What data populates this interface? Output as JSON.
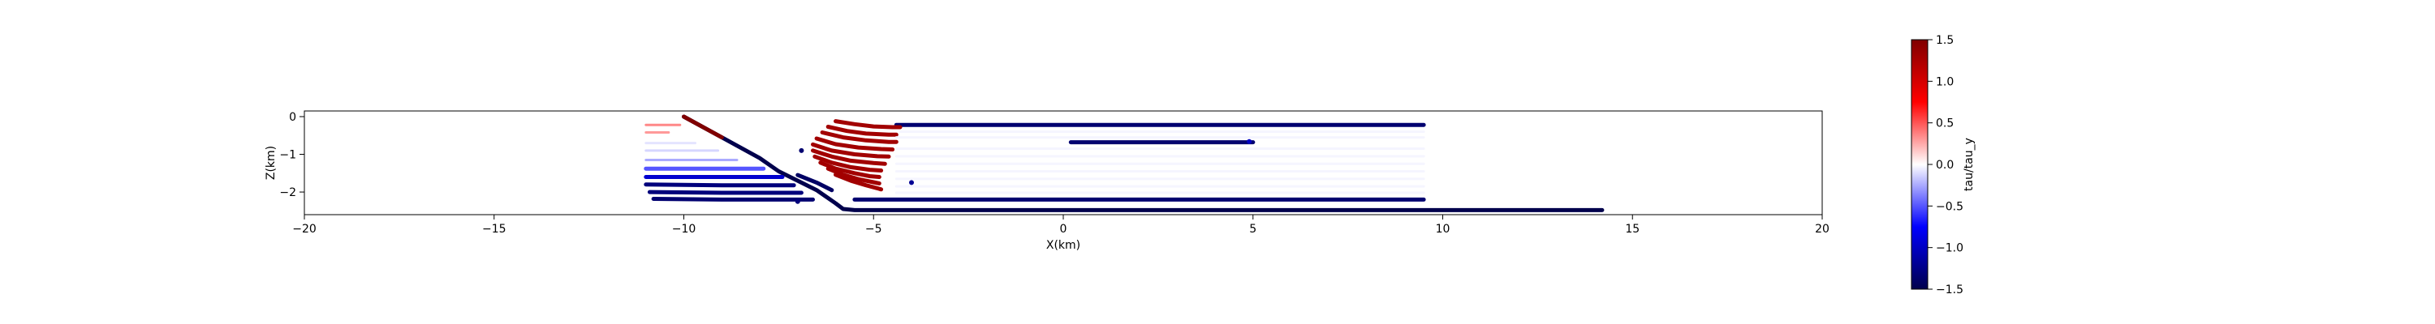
{
  "chart_data": {
    "type": "line",
    "title": "",
    "xlabel": "X(km)",
    "ylabel": "Z(km)",
    "xlim": [
      -20,
      20
    ],
    "ylim": [
      -2.6,
      0.15
    ],
    "xticks": [
      -20,
      -15,
      -10,
      -5,
      0,
      5,
      10,
      15,
      20
    ],
    "yticks": [
      0,
      -1,
      -2
    ],
    "grid": false,
    "legend": "none",
    "colormap": "seismic",
    "colorbar": {
      "label": "tau/tau_y",
      "range": [
        -1.5,
        1.5
      ],
      "ticks": [
        1.5,
        1.0,
        0.5,
        0.0,
        -0.5,
        -1.0,
        -1.5
      ]
    },
    "series": [
      {
        "x": [
          -10,
          -9.0,
          -8.0,
          -7.5,
          -7.0,
          -6.5,
          -6.0,
          -5.8,
          -5.5,
          0,
          5,
          10,
          14.2
        ],
        "y": [
          0,
          -0.55,
          -1.1,
          -1.45,
          -1.7,
          -1.95,
          -2.3,
          -2.45,
          -2.48,
          -2.48,
          -2.48,
          -2.48,
          -2.48
        ],
        "stress": -1.5
      },
      {
        "x": [
          -10.0,
          -9.0
        ],
        "y": [
          0.0,
          -0.55
        ],
        "stress": 1.5
      },
      {
        "x": [
          -5.5,
          -2,
          2,
          6,
          9.5
        ],
        "y": [
          -2.2,
          -2.2,
          -2.2,
          -2.2,
          -2.2
        ],
        "stress": -1.35
      },
      {
        "x": [
          -4.4,
          0,
          4,
          9.5
        ],
        "y": [
          -0.22,
          -0.22,
          -0.22,
          -0.22
        ],
        "stress": -1.35
      },
      {
        "x": [
          0.2,
          2.5,
          5.0
        ],
        "y": [
          -0.68,
          -0.68,
          -0.68
        ],
        "stress": -1.35
      },
      {
        "x": [
          -6.0,
          -5.5,
          -5.0,
          -4.5,
          -4.3
        ],
        "y": [
          -0.12,
          -0.2,
          -0.26,
          -0.28,
          -0.28
        ],
        "stress": 1.3
      },
      {
        "x": [
          -6.2,
          -5.7,
          -5.2,
          -4.6,
          -4.4
        ],
        "y": [
          -0.27,
          -0.38,
          -0.45,
          -0.48,
          -0.48
        ],
        "stress": 1.3
      },
      {
        "x": [
          -6.35,
          -5.8,
          -5.2,
          -4.6,
          -4.4
        ],
        "y": [
          -0.42,
          -0.55,
          -0.63,
          -0.67,
          -0.67
        ],
        "stress": 1.3
      },
      {
        "x": [
          -6.5,
          -6.0,
          -5.4,
          -4.8,
          -4.5
        ],
        "y": [
          -0.58,
          -0.73,
          -0.82,
          -0.86,
          -0.87
        ],
        "stress": 1.3
      },
      {
        "x": [
          -6.6,
          -6.1,
          -5.5,
          -4.9,
          -4.6
        ],
        "y": [
          -0.74,
          -0.9,
          -1.0,
          -1.05,
          -1.06
        ],
        "stress": 1.3
      },
      {
        "x": [
          -6.6,
          -6.1,
          -5.6,
          -5.0,
          -4.7
        ],
        "y": [
          -0.9,
          -1.06,
          -1.17,
          -1.23,
          -1.25
        ],
        "stress": 1.3
      },
      {
        "x": [
          -6.55,
          -6.1,
          -5.6,
          -5.1,
          -4.8
        ],
        "y": [
          -1.06,
          -1.22,
          -1.34,
          -1.41,
          -1.43
        ],
        "stress": 1.3
      },
      {
        "x": [
          -6.4,
          -6.0,
          -5.5,
          -5.1,
          -4.85
        ],
        "y": [
          -1.22,
          -1.38,
          -1.5,
          -1.58,
          -1.6
        ],
        "stress": 1.3
      },
      {
        "x": [
          -6.2,
          -5.8,
          -5.4,
          -5.0,
          -4.85
        ],
        "y": [
          -1.38,
          -1.54,
          -1.66,
          -1.74,
          -1.77
        ],
        "stress": 1.3
      },
      {
        "x": [
          -6.0,
          -5.6,
          -5.2,
          -4.9,
          -4.8
        ],
        "y": [
          -1.54,
          -1.7,
          -1.82,
          -1.9,
          -1.93
        ],
        "stress": 1.3
      },
      {
        "x": [
          -7.0,
          -6.5,
          -6.1
        ],
        "y": [
          -1.55,
          -1.75,
          -1.95
        ],
        "stress": -1.4
      },
      {
        "x": [
          -10.8,
          -9.0,
          -7.5,
          -6.6
        ],
        "y": [
          -2.18,
          -2.2,
          -2.2,
          -2.2
        ],
        "stress": -1.35
      },
      {
        "x": [
          -10.9,
          -9.0,
          -7.6,
          -6.9
        ],
        "y": [
          -2.0,
          -2.02,
          -2.02,
          -2.02
        ],
        "stress": -1.3
      },
      {
        "x": [
          -11.0,
          -9.0,
          -7.7,
          -7.1
        ],
        "y": [
          -1.8,
          -1.82,
          -1.82,
          -1.82
        ],
        "stress": -1.3
      },
      {
        "x": [
          -11.0,
          -9.2,
          -8.0,
          -7.4
        ],
        "y": [
          -1.6,
          -1.6,
          -1.6,
          -1.6
        ],
        "stress": -0.95
      },
      {
        "x": [
          -11.0,
          -9.5,
          -8.5,
          -7.9
        ],
        "y": [
          -1.38,
          -1.38,
          -1.38,
          -1.38
        ],
        "stress": -0.5
      },
      {
        "x": [
          -11.0,
          -9.8,
          -8.6
        ],
        "y": [
          -1.15,
          -1.15,
          -1.15
        ],
        "stress": -0.25
      },
      {
        "x": [
          -11.0,
          -10.0,
          -9.1
        ],
        "y": [
          -0.9,
          -0.9,
          -0.9
        ],
        "stress": -0.12
      },
      {
        "x": [
          -11.0,
          -10.4,
          -9.7
        ],
        "y": [
          -0.7,
          -0.7,
          -0.7
        ],
        "stress": -0.08
      },
      {
        "x": [
          -11.0,
          -10.4
        ],
        "y": [
          -0.42,
          -0.42
        ],
        "stress": 0.3
      },
      {
        "x": [
          -11.0,
          -10.4,
          -10.1
        ],
        "y": [
          -0.22,
          -0.22,
          -0.22
        ],
        "stress": 0.35
      },
      {
        "x": [
          -4.3,
          0,
          5,
          9.5
        ],
        "y": [
          -0.4,
          -0.4,
          -0.4,
          -0.4
        ],
        "stress": -0.03
      },
      {
        "x": [
          -4.4,
          0,
          5,
          9.5
        ],
        "y": [
          -0.55,
          -0.55,
          -0.55,
          -0.55
        ],
        "stress": -0.03
      },
      {
        "x": [
          -4.4,
          0,
          5,
          9.5
        ],
        "y": [
          -0.85,
          -0.85,
          -0.85,
          -0.85
        ],
        "stress": -0.03
      },
      {
        "x": [
          -4.4,
          0,
          5,
          9.5
        ],
        "y": [
          -1.05,
          -1.05,
          -1.05,
          -1.05
        ],
        "stress": -0.03
      },
      {
        "x": [
          -4.4,
          0,
          5,
          9.5
        ],
        "y": [
          -1.25,
          -1.25,
          -1.25,
          -1.25
        ],
        "stress": -0.03
      },
      {
        "x": [
          -4.4,
          0,
          5,
          9.5
        ],
        "y": [
          -1.45,
          -1.45,
          -1.45,
          -1.45
        ],
        "stress": -0.03
      },
      {
        "x": [
          -4.4,
          0,
          5,
          9.5
        ],
        "y": [
          -1.65,
          -1.65,
          -1.65,
          -1.65
        ],
        "stress": -0.03
      },
      {
        "x": [
          -4.4,
          0,
          5,
          9.5
        ],
        "y": [
          -1.85,
          -1.85,
          -1.85,
          -1.85
        ],
        "stress": -0.03
      },
      {
        "x": [
          -4.4,
          0,
          5,
          9.5
        ],
        "y": [
          -2.02,
          -2.02,
          -2.02,
          -2.02
        ],
        "stress": -0.03
      }
    ],
    "points": [
      {
        "x": -6.9,
        "y": -0.9,
        "stress": -1.35
      },
      {
        "x": -4.0,
        "y": -1.75,
        "stress": -1.2
      },
      {
        "x": -7.0,
        "y": -2.25,
        "stress": -1.3
      },
      {
        "x": 4.9,
        "y": -0.66,
        "stress": -1.0
      }
    ]
  }
}
